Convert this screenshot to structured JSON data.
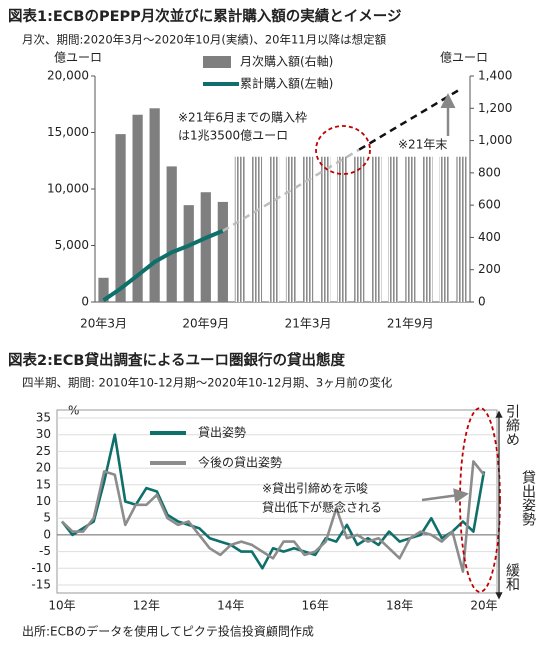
{
  "chart_data": [
    {
      "type": "bar",
      "title": "図表1:ECBのPEPP月次並びに累計購入額の実績とイメージ",
      "subtitle": "月次、期間:2020年3月～2020年10月(実績)、20年11月以降は想定額",
      "y_label": "億ユーロ",
      "y2_label": "億ユーロ",
      "categories": [
        "20年3月",
        null,
        null,
        null,
        null,
        null,
        "20年9月",
        null,
        null,
        null,
        null,
        null,
        "21年3月",
        null,
        null,
        null,
        null,
        null,
        "21年9月",
        null,
        null,
        null
      ],
      "series": [
        {
          "name": "月次購入額(右軸)",
          "type": "bar",
          "axis": "y2",
          "color": "#7f7f7f",
          "values": [
            150,
            1040,
            1160,
            1200,
            840,
            600,
            680,
            620,
            null,
            null,
            null,
            null,
            null,
            null,
            null,
            null,
            null,
            null,
            null,
            null,
            null,
            null
          ]
        },
        {
          "name": "累計購入額(左軸)",
          "type": "line",
          "color": "#0e6f6b",
          "values": [
            150,
            1190,
            2350,
            3550,
            4390,
            4990,
            5670,
            6290,
            null,
            null,
            null,
            null,
            null,
            null,
            null,
            null,
            null,
            null,
            null,
            null,
            null,
            null
          ]
        },
        {
          "type": "bar",
          "axis": "y2",
          "color": "#8c8c8c",
          "pattern": "hatched",
          "values": [
            null,
            null,
            null,
            null,
            null,
            null,
            null,
            null,
            900,
            900,
            900,
            900,
            900,
            900,
            900,
            900,
            900,
            900,
            900,
            900,
            900,
            900
          ]
        },
        {
          "type": "line",
          "color": "#bdbdbd",
          "dash": "dashed",
          "values": [
            null,
            null,
            null,
            null,
            null,
            null,
            null,
            6290,
            7190,
            8090,
            8990,
            9890,
            10790,
            11690,
            12590,
            13490,
            null,
            null,
            null,
            null,
            null,
            null
          ]
        },
        {
          "type": "line",
          "color": "#111111",
          "dash": "dashed",
          "values": [
            null,
            null,
            null,
            null,
            null,
            null,
            null,
            null,
            null,
            null,
            null,
            null,
            null,
            null,
            null,
            13490,
            14390,
            15290,
            16190,
            17090,
            17990,
            18890
          ]
        }
      ],
      "ylim": [
        0,
        20000
      ],
      "yticks": [
        0,
        {
          "value": 5000,
          "label": "5,000"
        },
        {
          "value": 10000,
          "label": "10,000"
        },
        {
          "value": 15000,
          "label": "15,000"
        },
        {
          "value": 20000,
          "label": "20,000"
        }
      ],
      "y2lim": [
        0,
        1400
      ],
      "y2ticks": [
        0,
        200,
        400,
        600,
        800,
        {
          "value": 1000,
          "label": "1,000"
        },
        {
          "value": 1200,
          "label": "1,200"
        },
        {
          "value": 1400,
          "label": "1,400"
        }
      ],
      "annotations": [
        "※21年6月までの購入枠",
        "は1兆3500億ユーロ",
        "※21年末"
      ],
      "grid": false
    },
    {
      "type": "line",
      "title": "図表2:ECB貸出調査によるユーロ圏銀行の貸出態度",
      "subtitle": "四半期、期間: 2010年10-12月期～2020年10-12月期、3ヶ月前の変化",
      "y_label": "%",
      "categories": [
        "10年",
        null,
        null,
        null,
        null,
        null,
        null,
        null,
        "12年",
        null,
        null,
        null,
        null,
        null,
        null,
        null,
        "14年",
        null,
        null,
        null,
        null,
        null,
        null,
        null,
        "16年",
        null,
        null,
        null,
        null,
        null,
        null,
        null,
        "18年",
        null,
        null,
        null,
        null,
        null,
        null,
        null,
        "20年"
      ],
      "series": [
        {
          "name": "貸出姿勢",
          "color": "#0e6f6b",
          "values": [
            4,
            0,
            2,
            4,
            16,
            30,
            10,
            9,
            14,
            13,
            6,
            4,
            3,
            2,
            -1,
            -2,
            -3,
            -5,
            -5,
            -10,
            -4,
            -5,
            -4,
            -5,
            -6,
            -1,
            -2,
            3,
            -3,
            -1,
            -3,
            1,
            -2,
            -1,
            0,
            5,
            -1,
            1,
            4,
            1,
            19
          ]
        },
        {
          "name": "今後の貸出姿勢",
          "color": "#8c8c8c",
          "values": [
            4,
            1,
            1,
            5,
            19,
            18,
            3,
            9,
            9,
            12,
            5,
            3,
            4,
            0,
            -4,
            -6,
            -3,
            -2,
            -3,
            -5,
            -7,
            -2,
            -2,
            -6,
            -5,
            -2,
            8,
            -1,
            0,
            -2,
            -1,
            -4,
            -7,
            -1,
            1,
            0,
            -2,
            1,
            -11,
            22,
            18
          ]
        }
      ],
      "ylim": [
        -15,
        35
      ],
      "yticks": [
        -15,
        -10,
        -5,
        0,
        5,
        10,
        15,
        20,
        25,
        30,
        35
      ],
      "annotations": [
        "※貸出引締めを示唆",
        "貸出低下が懸念される"
      ],
      "side_labels": [
        "引締め",
        "貸出姿勢",
        "緩和"
      ],
      "source": "出所:ECBのデータを使用してピクテ投信投資顧問作成",
      "grid": true
    }
  ]
}
